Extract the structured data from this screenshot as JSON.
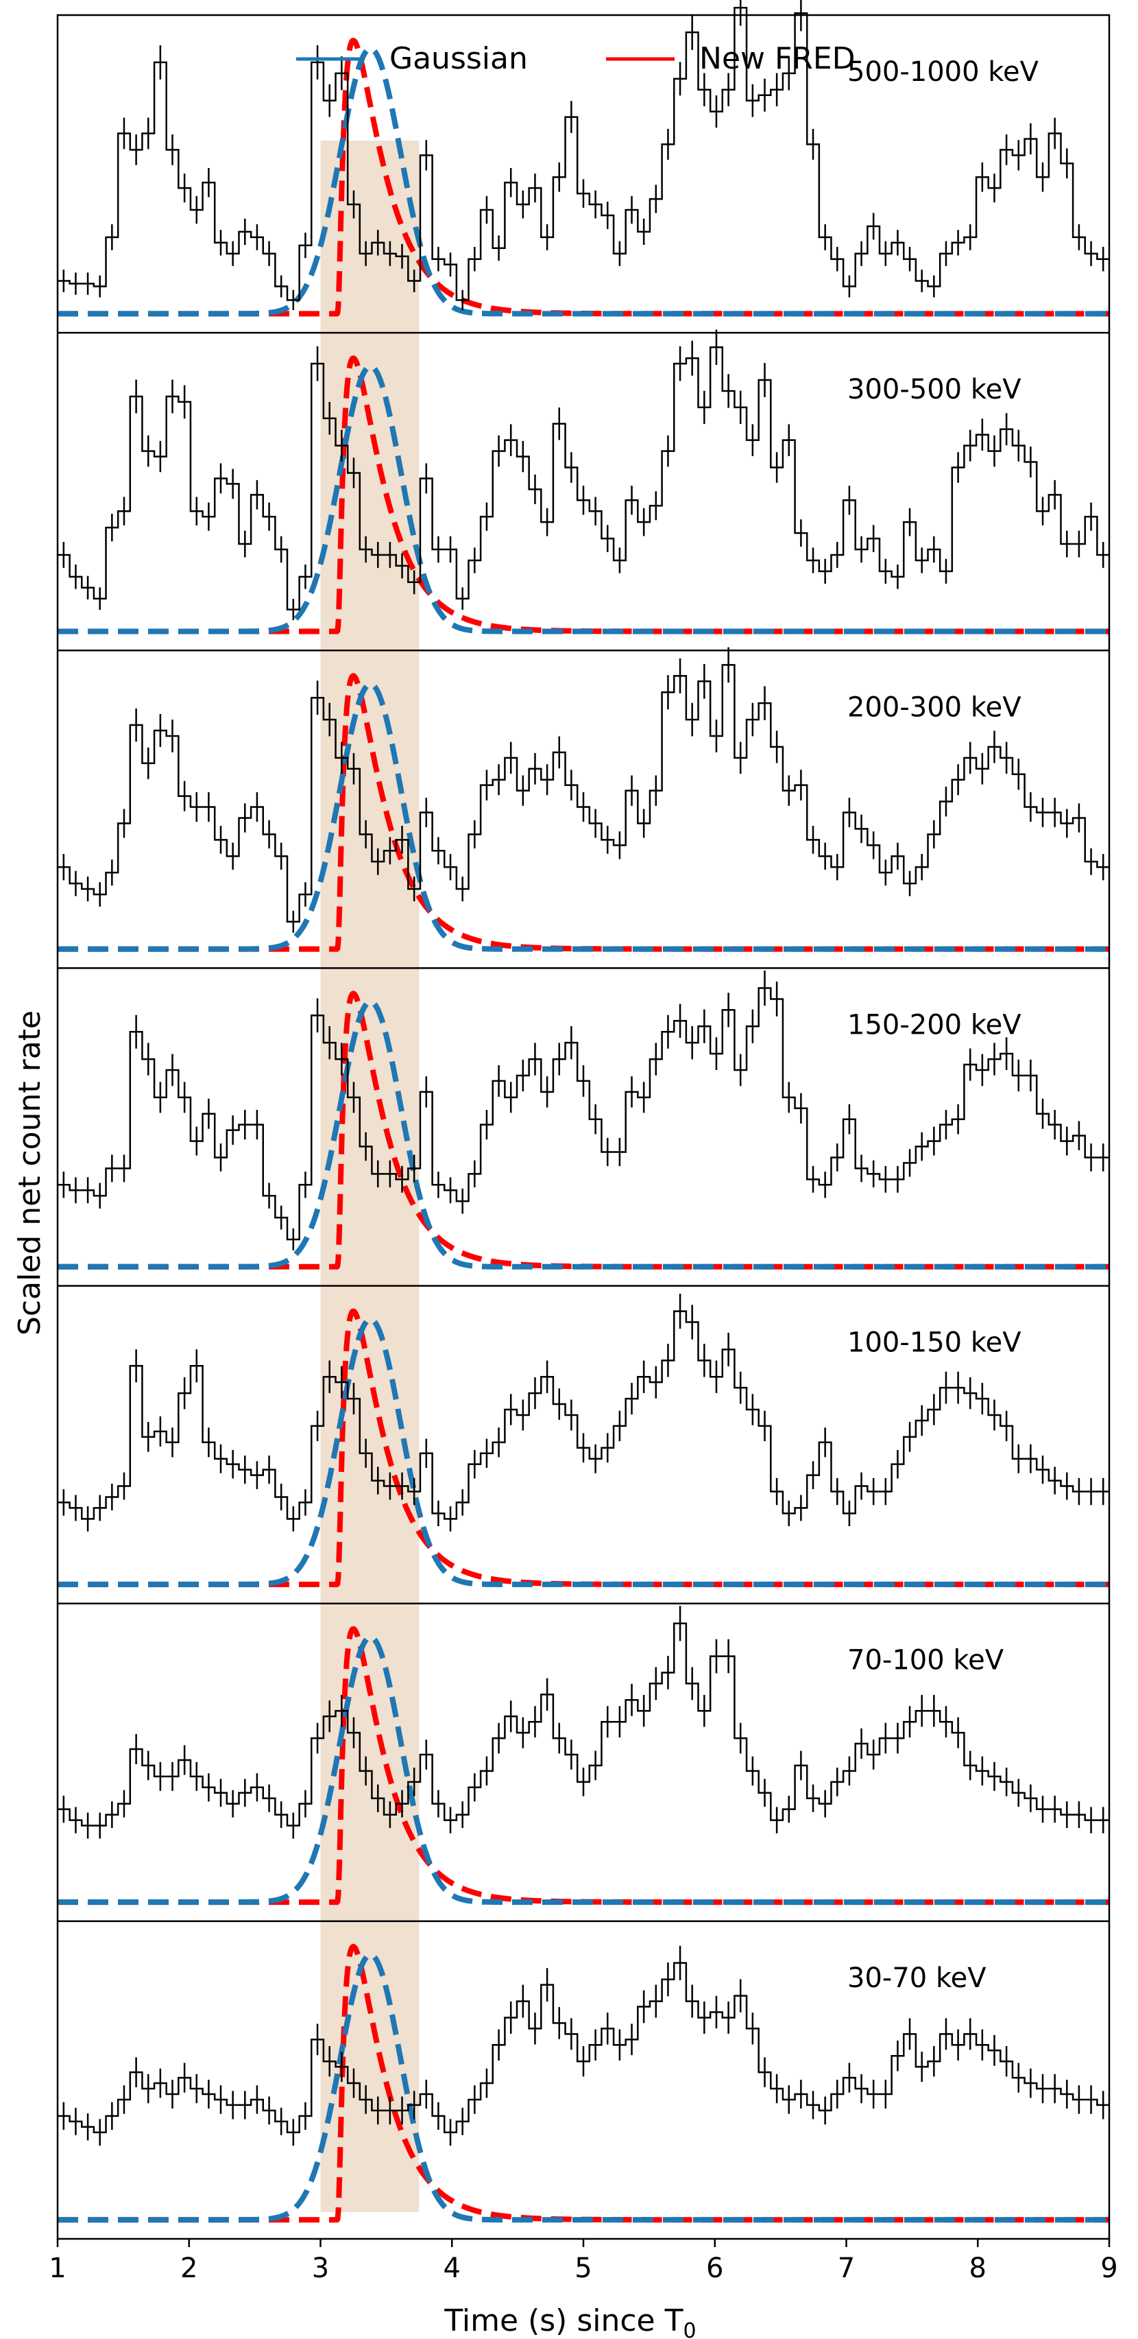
{
  "chart_data": {
    "type": "line",
    "xlabel": "Time (s) since T",
    "xlabel_sub": "0",
    "ylabel": "Scaled net count rate",
    "xlim": [
      1,
      9
    ],
    "xticks": [
      1,
      2,
      3,
      4,
      5,
      6,
      7,
      8,
      9
    ],
    "legend": {
      "placement": "top-center",
      "entries": [
        {
          "name": "Gaussian",
          "color": "#1f77b4"
        },
        {
          "name": "New FRED",
          "color": "#ff0000"
        }
      ]
    },
    "highlight_span": {
      "x0": 3.0,
      "x1": 3.75,
      "color": "#efe0d0"
    },
    "colors": {
      "histogram": "#000000",
      "gaussian": "#1f77b4",
      "fred": "#ff0000"
    },
    "fit_params": {
      "gaussian": {
        "peak_x": 3.38,
        "sigma": 0.23
      },
      "fred": {
        "onset_x": 3.12,
        "rise": 0.07,
        "decay": 0.24
      }
    },
    "panels": [
      {
        "band": "500-1000 keV",
        "y": [
          0.12,
          0.11,
          0.11,
          0.1,
          0.28,
          0.66,
          0.6,
          0.66,
          0.92,
          0.6,
          0.46,
          0.38,
          0.48,
          0.26,
          0.22,
          0.3,
          0.28,
          0.22,
          0.1,
          0.05,
          0.25,
          0.92,
          0.78,
          0.88,
          0.4,
          0.22,
          0.26,
          0.22,
          0.21,
          0.12,
          0.58,
          0.2,
          0.18,
          0.05,
          0.2,
          0.38,
          0.24,
          0.48,
          0.4,
          0.46,
          0.28,
          0.5,
          0.72,
          0.44,
          0.4,
          0.36,
          0.22,
          0.38,
          0.3,
          0.42,
          0.62,
          0.86,
          1.03,
          0.82,
          0.74,
          0.82,
          1.12,
          0.78,
          0.8,
          0.82,
          0.88,
          1.1,
          0.62,
          0.28,
          0.2,
          0.1,
          0.22,
          0.32,
          0.22,
          0.26,
          0.2,
          0.12,
          0.1,
          0.22,
          0.26,
          0.28,
          0.5,
          0.46,
          0.6,
          0.58,
          0.64,
          0.5,
          0.66,
          0.55,
          0.28,
          0.22,
          0.2
        ]
      },
      {
        "band": "300-500 keV",
        "y": [
          0.28,
          0.2,
          0.16,
          0.12,
          0.38,
          0.44,
          0.86,
          0.66,
          0.64,
          0.86,
          0.84,
          0.44,
          0.42,
          0.56,
          0.54,
          0.32,
          0.5,
          0.42,
          0.3,
          0.08,
          0.2,
          0.98,
          0.78,
          0.68,
          0.58,
          0.3,
          0.28,
          0.28,
          0.24,
          0.18,
          0.56,
          0.3,
          0.3,
          0.12,
          0.26,
          0.42,
          0.66,
          0.7,
          0.64,
          0.52,
          0.4,
          0.76,
          0.6,
          0.48,
          0.44,
          0.34,
          0.26,
          0.48,
          0.4,
          0.46,
          0.66,
          0.98,
          1.0,
          0.82,
          1.04,
          0.88,
          0.82,
          0.7,
          0.92,
          0.6,
          0.7,
          0.36,
          0.26,
          0.22,
          0.28,
          0.48,
          0.3,
          0.34,
          0.22,
          0.2,
          0.4,
          0.26,
          0.3,
          0.22,
          0.6,
          0.68,
          0.72,
          0.66,
          0.74,
          0.68,
          0.62,
          0.44,
          0.5,
          0.32,
          0.32,
          0.42,
          0.28
        ]
      },
      {
        "band": "200-300 keV",
        "y": [
          0.3,
          0.24,
          0.22,
          0.2,
          0.28,
          0.46,
          0.82,
          0.68,
          0.8,
          0.78,
          0.56,
          0.52,
          0.52,
          0.4,
          0.34,
          0.48,
          0.52,
          0.42,
          0.34,
          0.1,
          0.2,
          0.92,
          0.84,
          0.7,
          0.66,
          0.42,
          0.32,
          0.36,
          0.4,
          0.22,
          0.5,
          0.36,
          0.3,
          0.22,
          0.42,
          0.6,
          0.62,
          0.7,
          0.58,
          0.66,
          0.62,
          0.72,
          0.6,
          0.52,
          0.46,
          0.4,
          0.38,
          0.58,
          0.46,
          0.58,
          0.94,
          1.0,
          0.84,
          0.98,
          0.78,
          1.04,
          0.7,
          0.84,
          0.9,
          0.74,
          0.58,
          0.6,
          0.4,
          0.34,
          0.3,
          0.5,
          0.44,
          0.38,
          0.28,
          0.34,
          0.24,
          0.3,
          0.42,
          0.54,
          0.62,
          0.7,
          0.66,
          0.74,
          0.7,
          0.64,
          0.52,
          0.5,
          0.5,
          0.46,
          0.48,
          0.32,
          0.3
        ]
      },
      {
        "band": "150-200 keV",
        "y": [
          0.3,
          0.28,
          0.28,
          0.26,
          0.36,
          0.36,
          0.86,
          0.76,
          0.62,
          0.72,
          0.62,
          0.46,
          0.56,
          0.4,
          0.5,
          0.52,
          0.52,
          0.26,
          0.18,
          0.1,
          0.3,
          0.92,
          0.82,
          0.76,
          0.62,
          0.44,
          0.34,
          0.34,
          0.32,
          0.36,
          0.64,
          0.3,
          0.28,
          0.24,
          0.34,
          0.52,
          0.68,
          0.62,
          0.7,
          0.76,
          0.64,
          0.76,
          0.82,
          0.68,
          0.54,
          0.42,
          0.42,
          0.64,
          0.62,
          0.76,
          0.86,
          0.9,
          0.82,
          0.88,
          0.78,
          0.94,
          0.72,
          0.88,
          1.02,
          0.98,
          0.62,
          0.58,
          0.32,
          0.3,
          0.4,
          0.54,
          0.36,
          0.34,
          0.32,
          0.32,
          0.38,
          0.44,
          0.46,
          0.52,
          0.54,
          0.74,
          0.72,
          0.76,
          0.78,
          0.7,
          0.7,
          0.56,
          0.52,
          0.46,
          0.48,
          0.4,
          0.4
        ]
      },
      {
        "band": "100-150 keV",
        "y": [
          0.3,
          0.28,
          0.24,
          0.28,
          0.32,
          0.36,
          0.8,
          0.54,
          0.56,
          0.52,
          0.7,
          0.8,
          0.52,
          0.46,
          0.44,
          0.42,
          0.4,
          0.42,
          0.32,
          0.24,
          0.3,
          0.58,
          0.76,
          0.74,
          0.68,
          0.48,
          0.38,
          0.36,
          0.36,
          0.34,
          0.48,
          0.26,
          0.24,
          0.3,
          0.44,
          0.48,
          0.52,
          0.64,
          0.62,
          0.7,
          0.76,
          0.66,
          0.62,
          0.5,
          0.46,
          0.5,
          0.58,
          0.68,
          0.76,
          0.74,
          0.82,
          1.0,
          0.96,
          0.82,
          0.76,
          0.86,
          0.72,
          0.64,
          0.58,
          0.34,
          0.26,
          0.28,
          0.4,
          0.52,
          0.34,
          0.26,
          0.36,
          0.34,
          0.34,
          0.44,
          0.54,
          0.6,
          0.64,
          0.72,
          0.72,
          0.7,
          0.68,
          0.62,
          0.58,
          0.46,
          0.46,
          0.42,
          0.38,
          0.36,
          0.34,
          0.34,
          0.34
        ]
      },
      {
        "band": "70-100 keV",
        "y": [
          0.34,
          0.3,
          0.28,
          0.28,
          0.32,
          0.36,
          0.56,
          0.5,
          0.46,
          0.46,
          0.52,
          0.46,
          0.42,
          0.4,
          0.36,
          0.4,
          0.42,
          0.38,
          0.32,
          0.28,
          0.36,
          0.6,
          0.68,
          0.7,
          0.62,
          0.48,
          0.38,
          0.32,
          0.36,
          0.44,
          0.54,
          0.36,
          0.3,
          0.32,
          0.42,
          0.48,
          0.6,
          0.68,
          0.62,
          0.66,
          0.76,
          0.6,
          0.54,
          0.44,
          0.5,
          0.66,
          0.66,
          0.74,
          0.7,
          0.8,
          0.84,
          1.02,
          0.8,
          0.7,
          0.9,
          0.9,
          0.6,
          0.48,
          0.4,
          0.3,
          0.34,
          0.5,
          0.38,
          0.36,
          0.44,
          0.48,
          0.58,
          0.54,
          0.6,
          0.6,
          0.66,
          0.7,
          0.7,
          0.66,
          0.62,
          0.5,
          0.48,
          0.46,
          0.44,
          0.4,
          0.38,
          0.34,
          0.34,
          0.32,
          0.32,
          0.3,
          0.3
        ]
      },
      {
        "band": "30-70 keV",
        "y": [
          0.38,
          0.36,
          0.34,
          0.32,
          0.38,
          0.44,
          0.54,
          0.48,
          0.5,
          0.46,
          0.52,
          0.48,
          0.46,
          0.44,
          0.42,
          0.42,
          0.44,
          0.4,
          0.36,
          0.32,
          0.38,
          0.66,
          0.58,
          0.56,
          0.5,
          0.44,
          0.4,
          0.4,
          0.4,
          0.42,
          0.46,
          0.38,
          0.32,
          0.36,
          0.44,
          0.5,
          0.64,
          0.74,
          0.8,
          0.7,
          0.86,
          0.72,
          0.68,
          0.58,
          0.64,
          0.7,
          0.64,
          0.66,
          0.78,
          0.8,
          0.88,
          0.94,
          0.8,
          0.74,
          0.76,
          0.74,
          0.82,
          0.7,
          0.54,
          0.48,
          0.44,
          0.46,
          0.42,
          0.4,
          0.46,
          0.52,
          0.48,
          0.46,
          0.46,
          0.6,
          0.68,
          0.56,
          0.58,
          0.68,
          0.64,
          0.68,
          0.64,
          0.62,
          0.58,
          0.52,
          0.5,
          0.48,
          0.48,
          0.46,
          0.44,
          0.44,
          0.42
        ]
      }
    ]
  }
}
